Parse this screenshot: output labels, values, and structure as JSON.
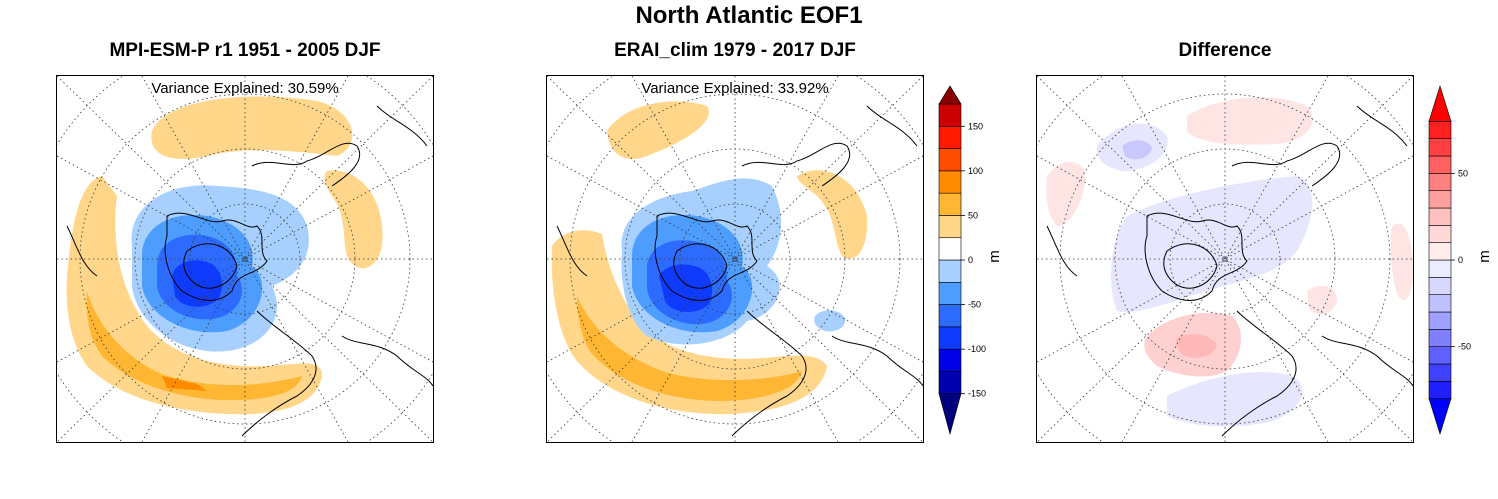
{
  "figure": {
    "title": "North Atlantic EOF1"
  },
  "chart_data": [
    {
      "type": "heatmap",
      "title": "MPI-ESM-P r1 1951 - 2005 DJF",
      "annotation": "Variance Explained: 30.59%",
      "field": "EOF1 loading (polar stereographic projection)"
    },
    {
      "type": "heatmap",
      "title": "ERAI_clim 1979 - 2017 DJF",
      "annotation": "Variance Explained: 33.92%",
      "field": "EOF1 loading (polar stereographic projection)"
    },
    {
      "type": "heatmap",
      "title": "Difference",
      "annotation": "",
      "field": "difference of EOF1 loadings"
    }
  ],
  "colorbar_main": {
    "unit": "m",
    "range": [
      -175,
      175
    ],
    "levels": [
      -175,
      -150,
      -125,
      -100,
      -75,
      -50,
      -25,
      0,
      25,
      50,
      75,
      100,
      125,
      150,
      175
    ],
    "colors": [
      "#00007f",
      "#0000b0",
      "#0000e6",
      "#0f3bff",
      "#2d6bff",
      "#4d9dff",
      "#a8d0ff",
      "#ffffff",
      "#ffd68a",
      "#ffb733",
      "#ff8c00",
      "#ff4d00",
      "#ff1a00",
      "#cc0000",
      "#8b0000"
    ],
    "tick_labels": [
      "-150",
      "-100",
      "-50",
      "0",
      "50",
      "100",
      "150"
    ],
    "tick_values": [
      -150,
      -100,
      -50,
      0,
      50,
      100,
      150
    ]
  },
  "colorbar_diff": {
    "unit": "m",
    "range": [
      -90,
      90
    ],
    "levels": [
      -90,
      -80,
      -70,
      -60,
      -50,
      -40,
      -30,
      -20,
      -10,
      0,
      10,
      20,
      30,
      40,
      50,
      60,
      70,
      80,
      90
    ],
    "colors": [
      "#0000ff",
      "#2020ff",
      "#4040ff",
      "#6060ff",
      "#8080ff",
      "#a0a0ff",
      "#c0c0ff",
      "#d8d8ff",
      "#ececff",
      "#ffecec",
      "#ffd8d8",
      "#ffc0c0",
      "#ffa0a0",
      "#ff8080",
      "#ff6060",
      "#ff4040",
      "#ff2020",
      "#ff0000"
    ],
    "tick_labels": [
      "-50",
      "0",
      "50"
    ],
    "tick_values": [
      -50,
      0,
      50
    ]
  },
  "colors": {
    "positive_light": "#ffd68a",
    "positive_mid": "#ffb733",
    "positive_strong": "#ff8c00",
    "negative_light": "#a8d0ff",
    "negative_mid": "#4d9dff",
    "negative_strong": "#2d6bff",
    "negative_deep": "#0f3bff",
    "diff_pos": "#ffd0d0",
    "diff_neg": "#dcdcff"
  }
}
